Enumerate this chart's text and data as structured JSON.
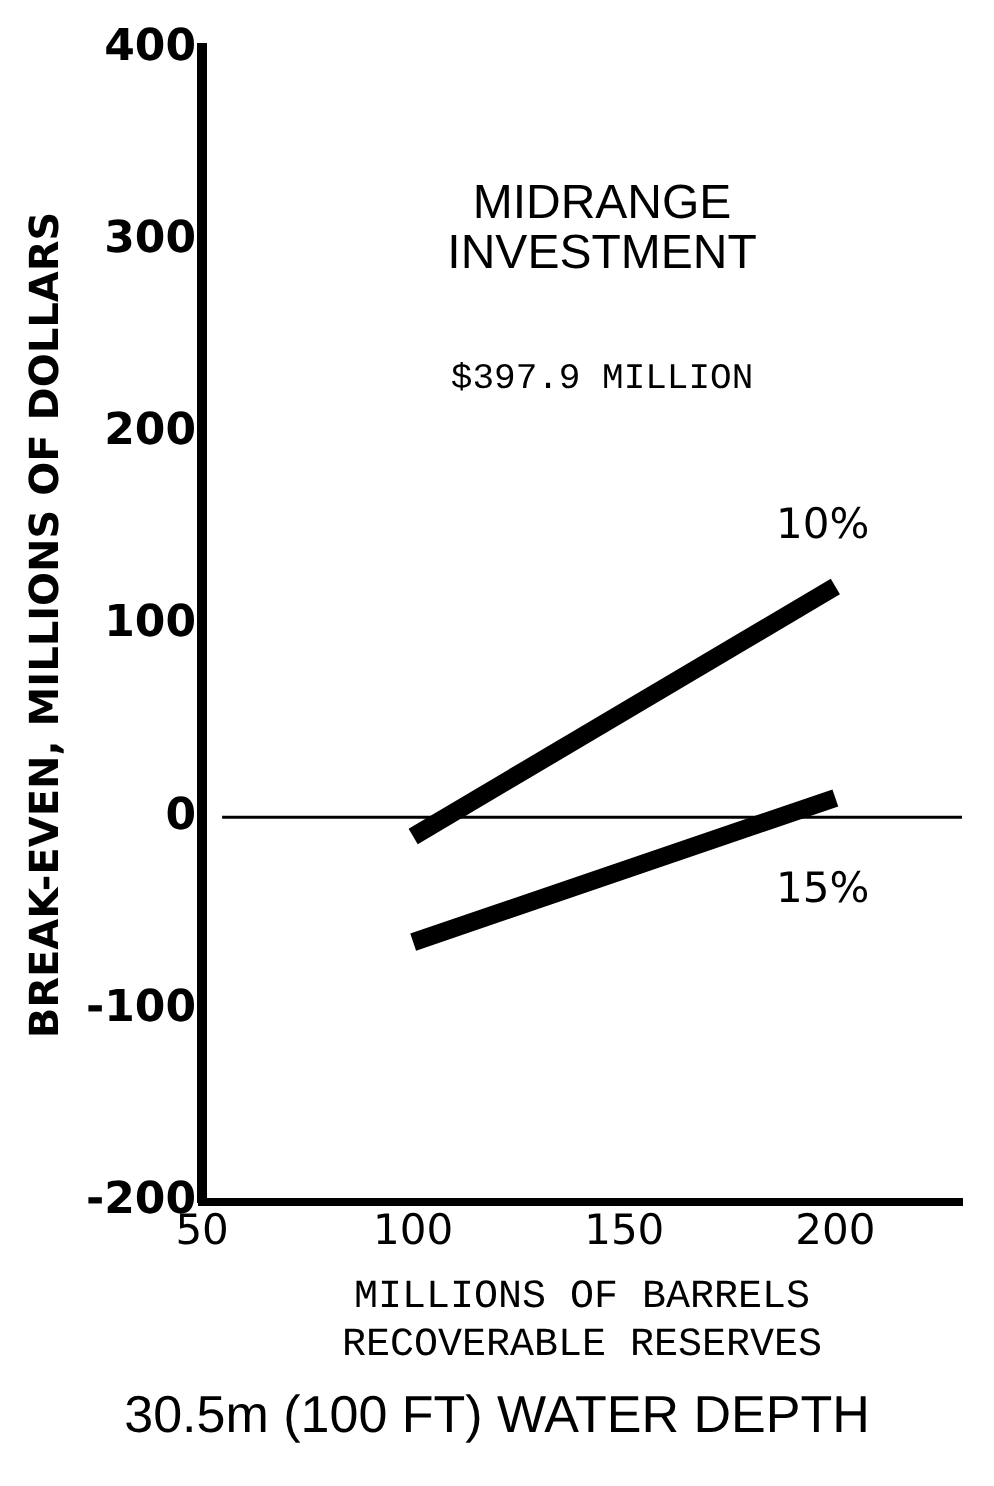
{
  "chart_data": {
    "type": "line",
    "xlabel": "MILLIONS OF BARRELS\nRECOVERABLE RESERVES",
    "ylabel": "BREAK-EVEN, MILLIONS OF DOLLARS",
    "annotations": [
      "MIDRANGE\nINVESTMENT",
      "$397.9 MILLION",
      "30.5m (100 FT) WATER DEPTH"
    ],
    "x": [
      100,
      200
    ],
    "series": [
      {
        "name": "10%",
        "color": "#000000",
        "values": [
          -10,
          120
        ]
      },
      {
        "name": "15%",
        "color": "#000000",
        "values": [
          -65,
          10
        ]
      }
    ],
    "xlim": [
      50,
      230
    ],
    "xticks": [
      50,
      100,
      150,
      200
    ],
    "ylim": [
      -200,
      400
    ],
    "yticks": [
      -200,
      -100,
      0,
      100,
      200,
      300,
      400
    ],
    "ref_lines": [
      {
        "axis": "y",
        "value": 0,
        "color": "#000000"
      }
    ],
    "grid": false,
    "legend": false,
    "marker": "none",
    "line_style": "solid"
  }
}
